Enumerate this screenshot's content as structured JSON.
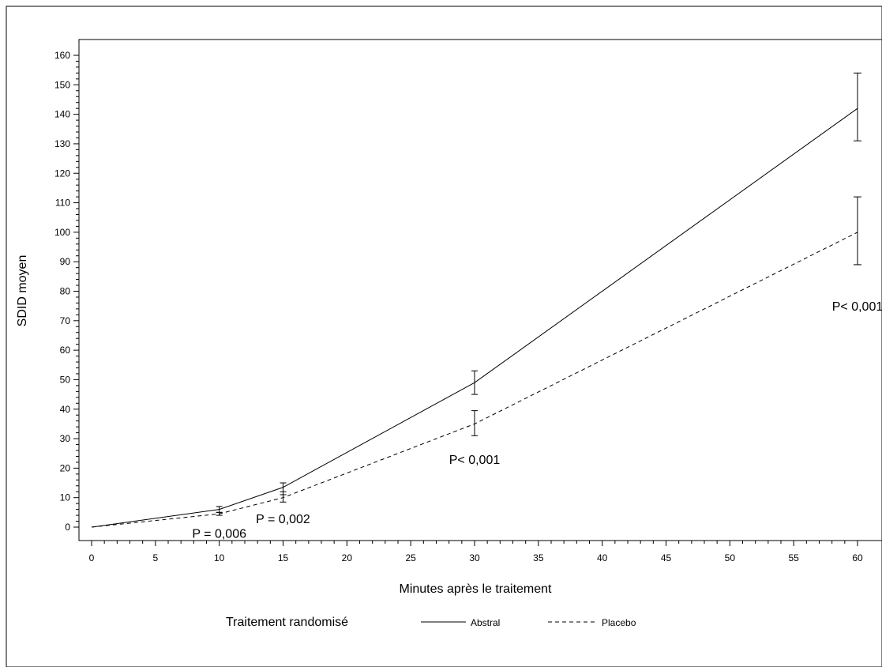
{
  "chart_data": {
    "type": "line",
    "title": "",
    "xlabel": "Minutes après le traitement",
    "ylabel": "SDID moyen",
    "xlim": [
      0,
      60
    ],
    "ylim": [
      0,
      160
    ],
    "x_ticks": [
      0,
      5,
      10,
      15,
      20,
      25,
      30,
      35,
      40,
      45,
      50,
      55,
      60
    ],
    "y_ticks": [
      0,
      10,
      20,
      30,
      40,
      50,
      60,
      70,
      80,
      90,
      100,
      110,
      120,
      130,
      140,
      150,
      160
    ],
    "grid": false,
    "legend": {
      "title": "Traitement randomisé",
      "position": "bottom"
    },
    "series": [
      {
        "name": "Abstral",
        "line_style": "solid",
        "x": [
          0,
          10,
          15,
          30,
          60
        ],
        "y": [
          0,
          6,
          13.5,
          49,
          142
        ],
        "error_low": [
          null,
          5,
          11,
          45,
          131
        ],
        "error_high": [
          null,
          7,
          15,
          53,
          154
        ]
      },
      {
        "name": "Placebo",
        "line_style": "dashed",
        "x": [
          0,
          10,
          15,
          30,
          60
        ],
        "y": [
          0,
          4.5,
          10,
          35,
          100
        ],
        "error_low": [
          null,
          4,
          8.5,
          31,
          89
        ],
        "error_high": [
          null,
          5,
          12,
          39.5,
          112
        ]
      }
    ],
    "annotations": [
      {
        "text": "P = 0,006",
        "x": 10,
        "y": -2
      },
      {
        "text": "P = 0,002",
        "x": 15,
        "y": 3
      },
      {
        "text": "P< 0,001",
        "x": 30,
        "y": 23
      },
      {
        "text": "P< 0,001",
        "x": 60,
        "y": 75
      }
    ]
  }
}
